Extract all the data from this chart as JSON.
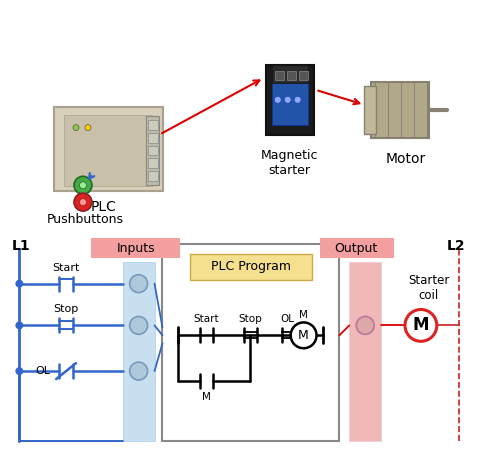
{
  "title": "",
  "bg_color": "#ffffff",
  "plc_label": "PLC",
  "magnetic_starter_label": "Magnetic\nstarter",
  "motor_label": "Motor",
  "pushbuttons_label": "Pushbuttons",
  "inputs_label": "Inputs",
  "output_label": "Output",
  "plc_program_label": "PLC Program",
  "l1_label": "L1",
  "l2_label": "L2",
  "start_label": "Start",
  "stop_label": "Stop",
  "ol_label": "OL",
  "m_label": "M",
  "starter_coil_label": "Starter\ncoil",
  "inputs_bg": "#c8dff0",
  "output_bg": "#f0b8b8",
  "inputs_header_bg": "#f4a0a0",
  "output_header_bg": "#f4a0a0",
  "plc_program_bg": "#ffffee",
  "plc_program_border": "#888888",
  "arrow_color_red": "#dd0000",
  "arrow_color_blue": "#3366cc",
  "circuit_color": "#3366cc",
  "coil_color": "#dd2222",
  "contact_color": "#222222",
  "green_button": "#44aa44",
  "red_button": "#dd2222"
}
